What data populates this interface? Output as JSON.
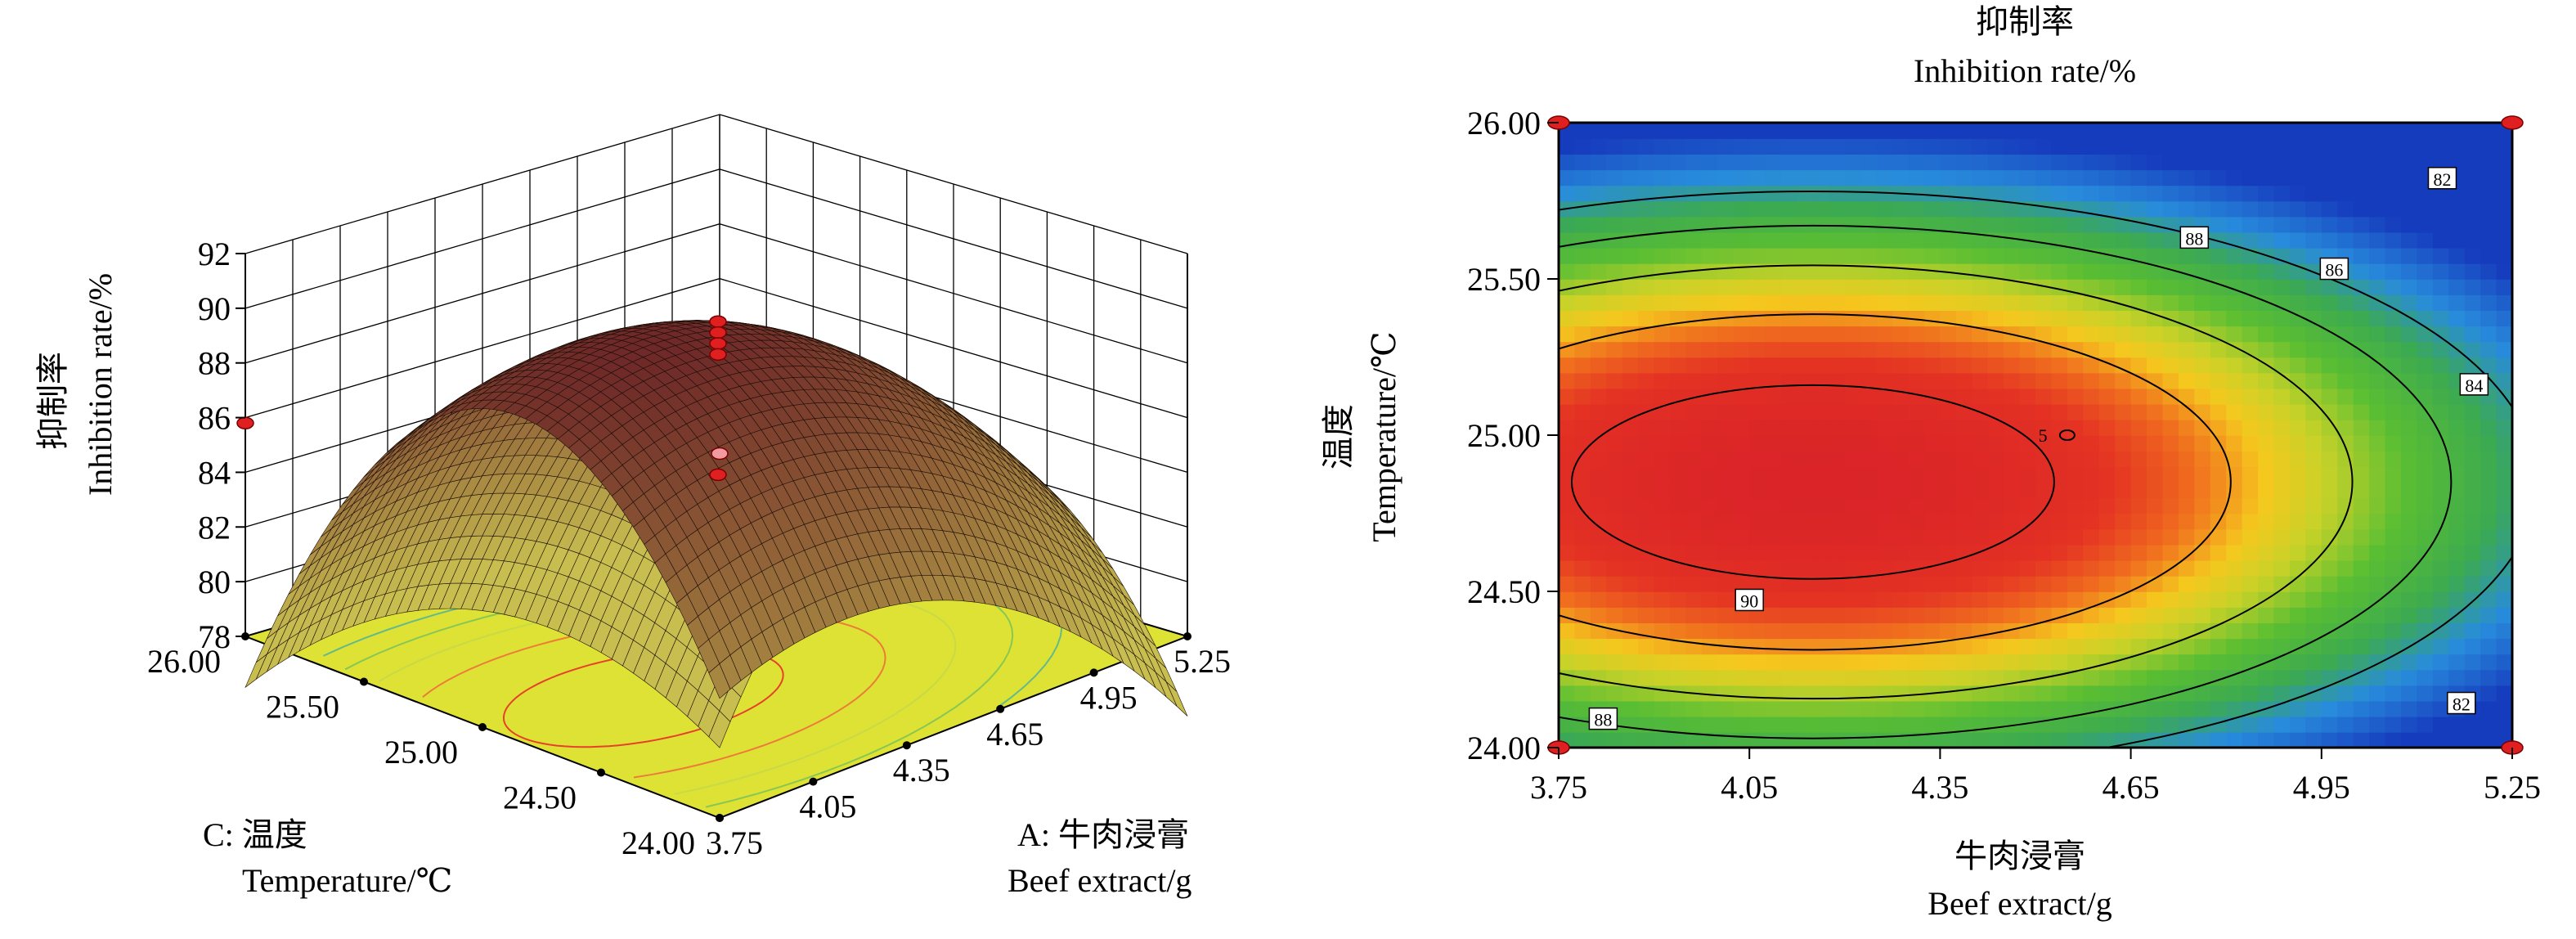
{
  "chart_data": [
    {
      "type": "surface",
      "zlabel_cn": "抑制率",
      "zlabel_en": "Inhibition rate/%",
      "xlabel_cn": "A: 牛肉浸膏",
      "xlabel_en": "Beef extract/g",
      "ylabel_cn": "C: 温度",
      "ylabel_en": "Temperature/℃",
      "x_ticks": [
        "3.75",
        "4.05",
        "4.35",
        "4.65",
        "4.95",
        "5.25"
      ],
      "y_ticks": [
        "24.00",
        "24.50",
        "25.00",
        "25.50",
        "26.00"
      ],
      "z_ticks": [
        "78",
        "80",
        "82",
        "84",
        "86",
        "88",
        "90",
        "92"
      ],
      "zlim": [
        78,
        92
      ],
      "xlim": [
        3.75,
        5.25
      ],
      "ylim": [
        24.0,
        26.0
      ],
      "corner_values": {
        "x3.75_y24.00": 83.6,
        "x3.75_y26.00": 85.8,
        "x5.25_y26.00": 78.0,
        "x5.25_y24.00": 80.0
      },
      "design_points": [
        {
          "x": 3.75,
          "y": 26.0,
          "z": 85.8
        },
        {
          "x": 4.5,
          "y": 25.0,
          "z": 89.9
        },
        {
          "x": 4.5,
          "y": 25.0,
          "z": 89.5
        },
        {
          "x": 4.5,
          "y": 25.0,
          "z": 89.1
        },
        {
          "x": 4.5,
          "y": 25.0,
          "z": 88.7
        },
        {
          "x": 4.5,
          "y": 25.0,
          "z": 84.3
        },
        {
          "x": 5.25,
          "y": 26.0,
          "z": 79.6
        }
      ]
    },
    {
      "type": "contour",
      "title_cn": "抑制率",
      "title_en": "Inhibition rate/%",
      "xlabel_cn": "牛肉浸膏",
      "xlabel_en": "Beef extract/g",
      "ylabel_cn": "温度",
      "ylabel_en": "Temperature/℃",
      "x_ticks": [
        "3.75",
        "4.05",
        "4.35",
        "4.65",
        "4.95",
        "5.25"
      ],
      "y_ticks": [
        "24.00",
        "24.50",
        "25.00",
        "25.50",
        "26.00"
      ],
      "xlim": [
        3.75,
        5.25
      ],
      "ylim": [
        24.0,
        26.0
      ],
      "optimum": {
        "x": 4.15,
        "y": 24.85,
        "z": 91.0
      },
      "levels": [
        82,
        84,
        86,
        88,
        90
      ],
      "contour_labels": [
        {
          "text": "90",
          "x": 4.05,
          "y": 24.47
        },
        {
          "text": "88",
          "x": 4.75,
          "y": 25.63
        },
        {
          "text": "88",
          "x": 3.82,
          "y": 24.09
        },
        {
          "text": "86",
          "x": 4.97,
          "y": 25.53
        },
        {
          "text": "84",
          "x": 5.19,
          "y": 25.16
        },
        {
          "text": "82",
          "x": 5.14,
          "y": 25.82
        },
        {
          "text": "82",
          "x": 5.17,
          "y": 24.14
        },
        {
          "text": "5",
          "x": 4.54,
          "y": 25.0
        }
      ],
      "design_points": [
        {
          "x": 3.75,
          "y": 26.0
        },
        {
          "x": 5.25,
          "y": 26.0
        },
        {
          "x": 3.75,
          "y": 24.0
        },
        {
          "x": 5.25,
          "y": 24.0
        },
        {
          "x": 4.55,
          "y": 25.0
        }
      ]
    }
  ]
}
